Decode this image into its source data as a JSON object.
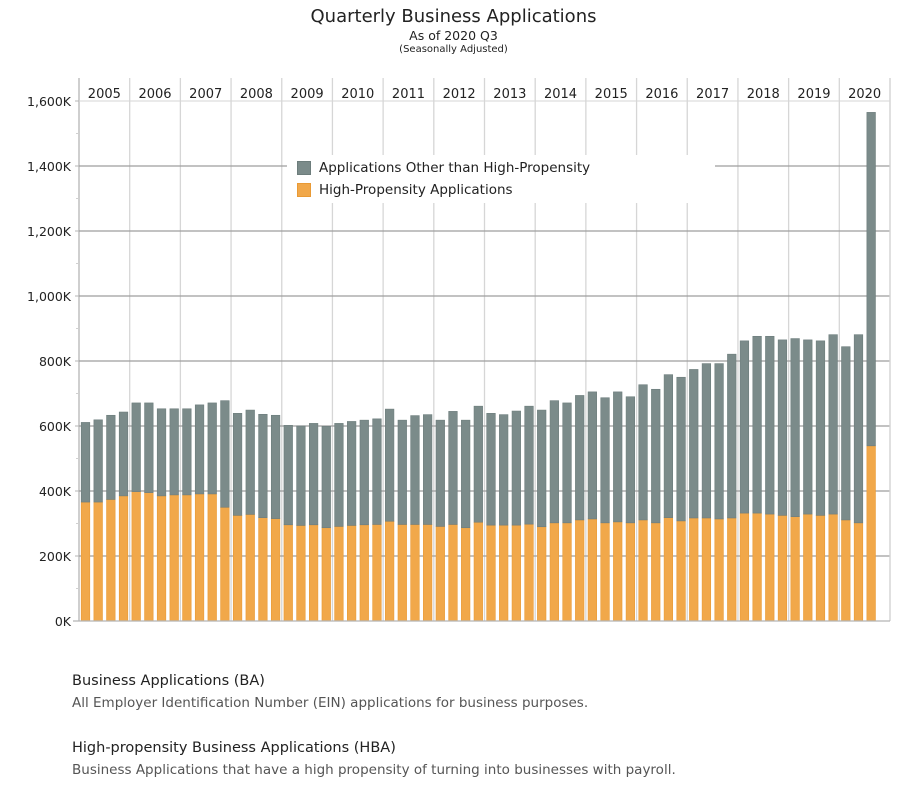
{
  "header": {
    "title": "Quarterly Business Applications",
    "subtitle": "As of 2020 Q3",
    "note": "(Seasonally Adjusted)"
  },
  "colors": {
    "other": "#7b8b8a",
    "other_border": "#6d7d7c",
    "high_propensity": "#f1a84a",
    "high_propensity_border": "#e99a35",
    "grid_major": "#9e9e9e",
    "grid_pane": "#d6d6d6",
    "axis": "#b5b5b5"
  },
  "legend": {
    "items": [
      {
        "label": "Applications Other than High-Propensity",
        "color_key": "other"
      },
      {
        "label": "High-Propensity Applications",
        "color_key": "high_propensity"
      }
    ]
  },
  "definitions": [
    {
      "term": "Business Applications (BA)",
      "text": "All Employer Identification Number (EIN) applications for business purposes."
    },
    {
      "term": "High-propensity Business Applications (HBA)",
      "text": "Business Applications that have a high propensity of turning into businesses with payroll."
    }
  ],
  "chart_data": {
    "type": "bar",
    "stacked": true,
    "title": "Quarterly Business Applications",
    "subtitle": "As of 2020 Q3 (Seasonally Adjusted)",
    "xlabel": "",
    "ylabel": "",
    "ylim": [
      0,
      1600
    ],
    "y_unit": "K",
    "yticks": [
      0,
      200,
      400,
      600,
      800,
      1000,
      1200,
      1400,
      1600
    ],
    "ytick_labels": [
      "0K",
      "200K",
      "400K",
      "600K",
      "800K",
      "1,000K",
      "1,200K",
      "1,400K",
      "1,600K"
    ],
    "grid": true,
    "legend_position": "top-center",
    "years": [
      "2005",
      "2006",
      "2007",
      "2008",
      "2009",
      "2010",
      "2011",
      "2012",
      "2013",
      "2014",
      "2015",
      "2016",
      "2017",
      "2018",
      "2019",
      "2020"
    ],
    "quarters_per_year": [
      4,
      4,
      4,
      4,
      4,
      4,
      4,
      4,
      4,
      4,
      4,
      4,
      4,
      4,
      4,
      3
    ],
    "categories": [
      "2005 Q1",
      "2005 Q2",
      "2005 Q3",
      "2005 Q4",
      "2006 Q1",
      "2006 Q2",
      "2006 Q3",
      "2006 Q4",
      "2007 Q1",
      "2007 Q2",
      "2007 Q3",
      "2007 Q4",
      "2008 Q1",
      "2008 Q2",
      "2008 Q3",
      "2008 Q4",
      "2009 Q1",
      "2009 Q2",
      "2009 Q3",
      "2009 Q4",
      "2010 Q1",
      "2010 Q2",
      "2010 Q3",
      "2010 Q4",
      "2011 Q1",
      "2011 Q2",
      "2011 Q3",
      "2011 Q4",
      "2012 Q1",
      "2012 Q2",
      "2012 Q3",
      "2012 Q4",
      "2013 Q1",
      "2013 Q2",
      "2013 Q3",
      "2013 Q4",
      "2014 Q1",
      "2014 Q2",
      "2014 Q3",
      "2014 Q4",
      "2015 Q1",
      "2015 Q2",
      "2015 Q3",
      "2015 Q4",
      "2016 Q1",
      "2016 Q2",
      "2016 Q3",
      "2016 Q4",
      "2017 Q1",
      "2017 Q2",
      "2017 Q3",
      "2017 Q4",
      "2018 Q1",
      "2018 Q2",
      "2018 Q3",
      "2018 Q4",
      "2019 Q1",
      "2019 Q2",
      "2019 Q3",
      "2019 Q4",
      "2020 Q1",
      "2020 Q2",
      "2020 Q3"
    ],
    "series": [
      {
        "name": "High-Propensity Applications",
        "color_key": "high_propensity",
        "values": [
          366,
          366,
          374,
          385,
          398,
          395,
          385,
          388,
          388,
          391,
          391,
          350,
          325,
          328,
          318,
          315,
          296,
          294,
          296,
          287,
          291,
          294,
          296,
          297,
          307,
          297,
          297,
          297,
          291,
          297,
          287,
          304,
          295,
          295,
          295,
          298,
          290,
          302,
          302,
          311,
          314,
          302,
          305,
          302,
          311,
          302,
          318,
          308,
          317,
          317,
          314,
          317,
          332,
          332,
          329,
          325,
          321,
          329,
          325,
          329,
          311,
          302,
          539
        ]
      },
      {
        "name": "Applications Other than High-Propensity",
        "color_key": "other",
        "values": [
          245,
          253,
          259,
          258,
          273,
          276,
          268,
          265,
          265,
          274,
          280,
          328,
          314,
          321,
          318,
          318,
          306,
          306,
          312,
          312,
          317,
          320,
          322,
          325,
          345,
          321,
          335,
          338,
          327,
          348,
          331,
          357,
          344,
          340,
          351,
          363,
          359,
          376,
          369,
          383,
          391,
          385,
          400,
          388,
          416,
          411,
          440,
          442,
          457,
          475,
          478,
          504,
          530,
          544,
          547,
          540,
          548,
          536,
          537,
          552,
          533,
          579,
          1026
        ]
      }
    ],
    "totals": [
      611,
      619,
      633,
      643,
      671,
      671,
      653,
      653,
      653,
      665,
      671,
      678,
      639,
      649,
      636,
      633,
      602,
      600,
      608,
      599,
      608,
      614,
      618,
      622,
      652,
      618,
      632,
      635,
      618,
      645,
      618,
      661,
      639,
      635,
      646,
      661,
      649,
      678,
      671,
      694,
      705,
      687,
      705,
      690,
      727,
      713,
      758,
      750,
      774,
      792,
      792,
      821,
      862,
      876,
      876,
      865,
      869,
      865,
      862,
      881,
      844,
      881,
      1565
    ]
  }
}
